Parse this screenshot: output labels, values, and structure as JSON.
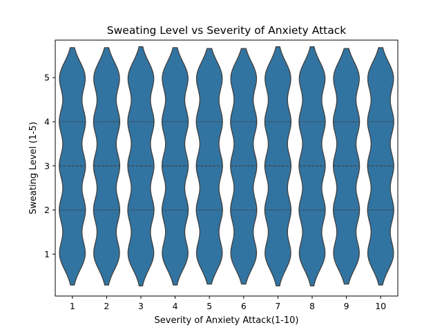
{
  "chart_data": {
    "type": "violin",
    "title": "Sweating Level vs Severity of Anxiety Attack",
    "xlabel": "Severity of Anxiety Attack(1-10)",
    "ylabel": "Sweating Level (1-5)",
    "categories": [
      "1",
      "2",
      "3",
      "4",
      "5",
      "6",
      "7",
      "8",
      "9",
      "10"
    ],
    "y_ticks": [
      1,
      2,
      3,
      4,
      5
    ],
    "ylim": [
      0.05,
      5.85
    ],
    "support": [
      [
        0.3,
        5.68
      ],
      [
        0.3,
        5.68
      ],
      [
        0.28,
        5.7
      ],
      [
        0.3,
        5.68
      ],
      [
        0.32,
        5.66
      ],
      [
        0.32,
        5.66
      ],
      [
        0.28,
        5.7
      ],
      [
        0.28,
        5.7
      ],
      [
        0.32,
        5.66
      ],
      [
        0.3,
        5.68
      ]
    ],
    "quartiles": [
      2,
      3,
      4
    ],
    "fill_color": "#3274a1",
    "edge_color": "#3f3f3f",
    "grid": false,
    "legend": "none"
  }
}
